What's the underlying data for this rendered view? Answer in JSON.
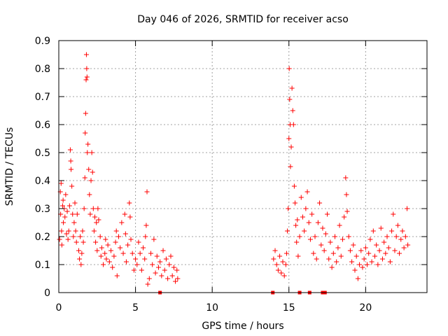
{
  "chart_data": {
    "type": "scatter",
    "title": "Day 046 of 2026, SRMTID for receiver acso",
    "xlabel": "GPS time / hours",
    "ylabel": "SRMTID / TECUs",
    "xlim": [
      0,
      24
    ],
    "ylim": [
      0,
      0.9
    ],
    "xticks": [
      0,
      5,
      10,
      15,
      20
    ],
    "yticks": [
      0,
      0.1,
      0.2,
      0.3,
      0.4,
      0.5,
      0.6,
      0.7,
      0.8,
      0.9
    ],
    "grid": true,
    "marker": "+",
    "color": "#ff0000",
    "series": [
      {
        "name": "SRMTID",
        "points": [
          [
            0.05,
            0.19
          ],
          [
            0.1,
            0.36
          ],
          [
            0.12,
            0.28
          ],
          [
            0.15,
            0.39
          ],
          [
            0.18,
            0.22
          ],
          [
            0.2,
            0.17
          ],
          [
            0.25,
            0.31
          ],
          [
            0.28,
            0.33
          ],
          [
            0.3,
            0.25
          ],
          [
            0.35,
            0.3
          ],
          [
            0.4,
            0.27
          ],
          [
            0.45,
            0.35
          ],
          [
            0.5,
            0.21
          ],
          [
            0.55,
            0.29
          ],
          [
            0.6,
            0.19
          ],
          [
            0.65,
            0.22
          ],
          [
            0.7,
            0.31
          ],
          [
            0.75,
            0.51
          ],
          [
            0.78,
            0.47
          ],
          [
            0.8,
            0.44
          ],
          [
            0.85,
            0.38
          ],
          [
            0.9,
            0.28
          ],
          [
            0.95,
            0.2
          ],
          [
            1.0,
            0.25
          ],
          [
            1.05,
            0.32
          ],
          [
            1.1,
            0.22
          ],
          [
            1.15,
            0.18
          ],
          [
            1.2,
            0.28
          ],
          [
            1.3,
            0.15
          ],
          [
            1.35,
            0.12
          ],
          [
            1.4,
            0.2
          ],
          [
            1.45,
            0.1
          ],
          [
            1.5,
            0.14
          ],
          [
            1.55,
            0.22
          ],
          [
            1.6,
            0.18
          ],
          [
            1.65,
            0.3
          ],
          [
            1.7,
            0.41
          ],
          [
            1.72,
            0.57
          ],
          [
            1.75,
            0.64
          ],
          [
            1.78,
            0.76
          ],
          [
            1.8,
            0.85
          ],
          [
            1.82,
            0.8
          ],
          [
            1.84,
            0.77
          ],
          [
            1.86,
            0.5
          ],
          [
            1.9,
            0.53
          ],
          [
            1.95,
            0.44
          ],
          [
            2.0,
            0.35
          ],
          [
            2.05,
            0.28
          ],
          [
            2.1,
            0.4
          ],
          [
            2.15,
            0.5
          ],
          [
            2.2,
            0.43
          ],
          [
            2.25,
            0.3
          ],
          [
            2.3,
            0.22
          ],
          [
            2.35,
            0.27
          ],
          [
            2.4,
            0.18
          ],
          [
            2.45,
            0.25
          ],
          [
            2.5,
            0.15
          ],
          [
            2.55,
            0.3
          ],
          [
            2.6,
            0.26
          ],
          [
            2.7,
            0.2
          ],
          [
            2.75,
            0.13
          ],
          [
            2.8,
            0.16
          ],
          [
            2.9,
            0.1
          ],
          [
            3.0,
            0.14
          ],
          [
            3.05,
            0.19
          ],
          [
            3.1,
            0.12
          ],
          [
            3.2,
            0.17
          ],
          [
            3.3,
            0.11
          ],
          [
            3.4,
            0.15
          ],
          [
            3.5,
            0.09
          ],
          [
            3.6,
            0.13
          ],
          [
            3.7,
            0.18
          ],
          [
            3.75,
            0.22
          ],
          [
            3.8,
            0.06
          ],
          [
            3.9,
            0.2
          ],
          [
            4.0,
            0.16
          ],
          [
            4.1,
            0.25
          ],
          [
            4.2,
            0.14
          ],
          [
            4.3,
            0.28
          ],
          [
            4.35,
            0.21
          ],
          [
            4.4,
            0.11
          ],
          [
            4.5,
            0.17
          ],
          [
            4.6,
            0.32
          ],
          [
            4.65,
            0.27
          ],
          [
            4.7,
            0.19
          ],
          [
            4.8,
            0.14
          ],
          [
            4.9,
            0.08
          ],
          [
            5.0,
            0.12
          ],
          [
            5.1,
            0.1
          ],
          [
            5.2,
            0.18
          ],
          [
            5.3,
            0.14
          ],
          [
            5.4,
            0.08
          ],
          [
            5.5,
            0.16
          ],
          [
            5.6,
            0.12
          ],
          [
            5.65,
            0.2
          ],
          [
            5.7,
            0.24
          ],
          [
            5.75,
            0.36
          ],
          [
            5.8,
            0.03
          ],
          [
            5.9,
            0.05
          ],
          [
            6.0,
            0.14
          ],
          [
            6.1,
            0.1
          ],
          [
            6.2,
            0.19
          ],
          [
            6.3,
            0.07
          ],
          [
            6.4,
            0.13
          ],
          [
            6.5,
            0.09
          ],
          [
            6.6,
            0.11
          ],
          [
            6.7,
            0.06
          ],
          [
            6.8,
            0.15
          ],
          [
            6.9,
            0.08
          ],
          [
            7.0,
            0.12
          ],
          [
            7.1,
            0.05
          ],
          [
            7.2,
            0.1
          ],
          [
            7.3,
            0.13
          ],
          [
            7.4,
            0.06
          ],
          [
            7.5,
            0.09
          ],
          [
            7.6,
            0.04
          ],
          [
            7.7,
            0.08
          ],
          [
            7.75,
            0.05
          ],
          [
            14.0,
            0.12
          ],
          [
            14.1,
            0.15
          ],
          [
            14.2,
            0.1
          ],
          [
            14.3,
            0.08
          ],
          [
            14.4,
            0.13
          ],
          [
            14.5,
            0.07
          ],
          [
            14.6,
            0.11
          ],
          [
            14.7,
            0.06
          ],
          [
            14.8,
            0.1
          ],
          [
            14.85,
            0.14
          ],
          [
            14.9,
            0.22
          ],
          [
            14.95,
            0.3
          ],
          [
            15.0,
            0.55
          ],
          [
            15.02,
            0.8
          ],
          [
            15.05,
            0.69
          ],
          [
            15.08,
            0.6
          ],
          [
            15.1,
            0.45
          ],
          [
            15.15,
            0.52
          ],
          [
            15.2,
            0.73
          ],
          [
            15.25,
            0.65
          ],
          [
            15.3,
            0.6
          ],
          [
            15.35,
            0.38
          ],
          [
            15.4,
            0.32
          ],
          [
            15.45,
            0.24
          ],
          [
            15.5,
            0.18
          ],
          [
            15.55,
            0.26
          ],
          [
            15.6,
            0.13
          ],
          [
            15.7,
            0.2
          ],
          [
            15.8,
            0.34
          ],
          [
            15.9,
            0.27
          ],
          [
            16.0,
            0.22
          ],
          [
            16.1,
            0.3
          ],
          [
            16.2,
            0.36
          ],
          [
            16.3,
            0.25
          ],
          [
            16.4,
            0.19
          ],
          [
            16.5,
            0.28
          ],
          [
            16.6,
            0.14
          ],
          [
            16.7,
            0.2
          ],
          [
            16.8,
            0.12
          ],
          [
            16.9,
            0.25
          ],
          [
            17.0,
            0.32
          ],
          [
            17.1,
            0.17
          ],
          [
            17.2,
            0.23
          ],
          [
            17.3,
            0.15
          ],
          [
            17.4,
            0.21
          ],
          [
            17.5,
            0.28
          ],
          [
            17.6,
            0.12
          ],
          [
            17.7,
            0.18
          ],
          [
            17.8,
            0.09
          ],
          [
            17.9,
            0.14
          ],
          [
            18.0,
            0.2
          ],
          [
            18.1,
            0.11
          ],
          [
            18.2,
            0.16
          ],
          [
            18.3,
            0.24
          ],
          [
            18.4,
            0.13
          ],
          [
            18.5,
            0.19
          ],
          [
            18.6,
            0.27
          ],
          [
            18.7,
            0.41
          ],
          [
            18.75,
            0.35
          ],
          [
            18.8,
            0.29
          ],
          [
            18.9,
            0.2
          ],
          [
            19.0,
            0.15
          ],
          [
            19.1,
            0.11
          ],
          [
            19.2,
            0.17
          ],
          [
            19.3,
            0.08
          ],
          [
            19.4,
            0.13
          ],
          [
            19.5,
            0.05
          ],
          [
            19.6,
            0.1
          ],
          [
            19.7,
            0.15
          ],
          [
            19.8,
            0.09
          ],
          [
            19.9,
            0.12
          ],
          [
            20.0,
            0.16
          ],
          [
            20.1,
            0.1
          ],
          [
            20.2,
            0.14
          ],
          [
            20.3,
            0.19
          ],
          [
            20.4,
            0.11
          ],
          [
            20.5,
            0.22
          ],
          [
            20.6,
            0.13
          ],
          [
            20.7,
            0.17
          ],
          [
            20.8,
            0.1
          ],
          [
            20.9,
            0.15
          ],
          [
            21.0,
            0.23
          ],
          [
            21.1,
            0.12
          ],
          [
            21.2,
            0.18
          ],
          [
            21.3,
            0.14
          ],
          [
            21.4,
            0.2
          ],
          [
            21.5,
            0.16
          ],
          [
            21.6,
            0.11
          ],
          [
            21.7,
            0.22
          ],
          [
            21.8,
            0.28
          ],
          [
            21.9,
            0.15
          ],
          [
            22.0,
            0.2
          ],
          [
            22.1,
            0.24
          ],
          [
            22.2,
            0.14
          ],
          [
            22.3,
            0.19
          ],
          [
            22.4,
            0.22
          ],
          [
            22.5,
            0.16
          ],
          [
            22.6,
            0.2
          ],
          [
            22.7,
            0.3
          ],
          [
            22.75,
            0.17
          ]
        ]
      }
    ],
    "zero_markers": [
      6.6,
      13.95,
      15.7,
      16.35,
      17.2,
      17.35
    ]
  }
}
